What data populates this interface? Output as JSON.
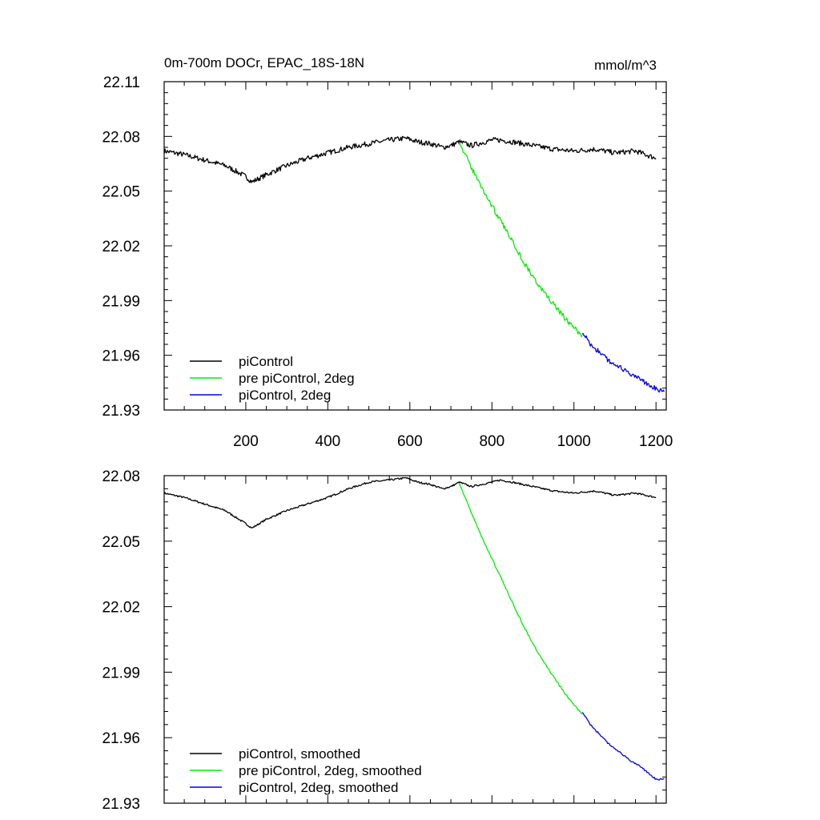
{
  "chart_data": [
    {
      "type": "line",
      "title": "0m-700m DOCr, EPAC_18S-18N",
      "units": "mmol/m^3",
      "xlim": [
        1,
        1225
      ],
      "ylim": [
        21.93,
        22.11
      ],
      "x_ticks": [
        200,
        400,
        600,
        800,
        1000,
        1200
      ],
      "y_ticks": [
        22.11,
        22.08,
        22.05,
        22.02,
        21.99,
        21.96,
        21.93
      ],
      "y_tick_labels": [
        "22.11",
        "22.08",
        "22.05",
        "22.02",
        "21.99",
        "21.96",
        "21.93"
      ],
      "grid": false,
      "legend_position": "bottom-left",
      "series": [
        {
          "name": "piControl",
          "color": "#000000",
          "x": [
            1,
            50,
            100,
            150,
            200,
            215,
            250,
            300,
            350,
            400,
            450,
            500,
            550,
            590,
            620,
            650,
            680,
            700,
            720,
            750,
            800,
            820,
            850,
            900,
            950,
            1000,
            1050,
            1100,
            1150,
            1200
          ],
          "y": [
            22.072,
            22.07,
            22.067,
            22.064,
            22.058,
            22.055,
            22.059,
            22.064,
            22.068,
            22.071,
            22.074,
            22.076,
            22.078,
            22.079,
            22.077,
            22.076,
            22.074,
            22.075,
            22.077,
            22.075,
            22.078,
            22.078,
            22.077,
            22.075,
            22.073,
            22.072,
            22.073,
            22.071,
            22.072,
            22.068
          ]
        },
        {
          "name": "pre piControl, 2deg",
          "color": "#00ee00",
          "x": [
            720,
            730,
            750,
            775,
            800,
            825,
            850,
            875,
            900,
            925,
            950,
            975,
            1000,
            1020
          ],
          "y": [
            22.078,
            22.072,
            22.063,
            22.052,
            22.042,
            22.032,
            22.023,
            22.012,
            22.003,
            21.995,
            21.988,
            21.981,
            21.975,
            21.971
          ]
        },
        {
          "name": "piControl, 2deg",
          "color": "#0000ee",
          "x": [
            1020,
            1040,
            1060,
            1080,
            1100,
            1120,
            1140,
            1160,
            1180,
            1200,
            1220
          ],
          "y": [
            21.973,
            21.966,
            21.962,
            21.958,
            21.955,
            21.952,
            21.949,
            21.947,
            21.944,
            21.942,
            21.94
          ]
        }
      ]
    },
    {
      "type": "line",
      "xlim": [
        1,
        1225
      ],
      "ylim": [
        21.93,
        22.08
      ],
      "x_ticks": [
        200,
        400,
        600,
        800,
        1000,
        1200
      ],
      "y_ticks": [
        22.08,
        22.05,
        22.02,
        21.99,
        21.96,
        21.93
      ],
      "y_tick_labels": [
        "22.08",
        "22.05",
        "22.02",
        "21.99",
        "21.96",
        "21.93"
      ],
      "grid": false,
      "legend_position": "bottom-left",
      "series": [
        {
          "name": "piControl, smoothed",
          "color": "#000000",
          "x": [
            1,
            50,
            100,
            150,
            200,
            215,
            250,
            300,
            350,
            400,
            450,
            500,
            550,
            590,
            620,
            650,
            680,
            700,
            720,
            750,
            800,
            820,
            850,
            900,
            950,
            1000,
            1050,
            1100,
            1150,
            1200
          ],
          "y": [
            22.072,
            22.07,
            22.067,
            22.064,
            22.058,
            22.056,
            22.06,
            22.064,
            22.067,
            22.07,
            22.074,
            22.077,
            22.078,
            22.079,
            22.077,
            22.076,
            22.074,
            22.075,
            22.077,
            22.075,
            22.077,
            22.078,
            22.077,
            22.075,
            22.073,
            22.072,
            22.073,
            22.071,
            22.072,
            22.07
          ]
        },
        {
          "name": "pre piControl, 2deg, smoothed",
          "color": "#00ee00",
          "x": [
            720,
            730,
            750,
            775,
            800,
            825,
            850,
            875,
            900,
            925,
            950,
            975,
            1000,
            1020
          ],
          "y": [
            22.077,
            22.072,
            22.063,
            22.052,
            22.042,
            22.032,
            22.022,
            22.012,
            22.003,
            21.995,
            21.988,
            21.981,
            21.975,
            21.971
          ]
        },
        {
          "name": "piControl, 2deg, smoothed",
          "color": "#0000ee",
          "x": [
            1020,
            1040,
            1060,
            1080,
            1100,
            1120,
            1140,
            1160,
            1180,
            1200,
            1220
          ],
          "y": [
            21.972,
            21.966,
            21.962,
            21.958,
            21.955,
            21.952,
            21.949,
            21.947,
            21.944,
            21.941,
            21.941
          ]
        }
      ]
    }
  ]
}
